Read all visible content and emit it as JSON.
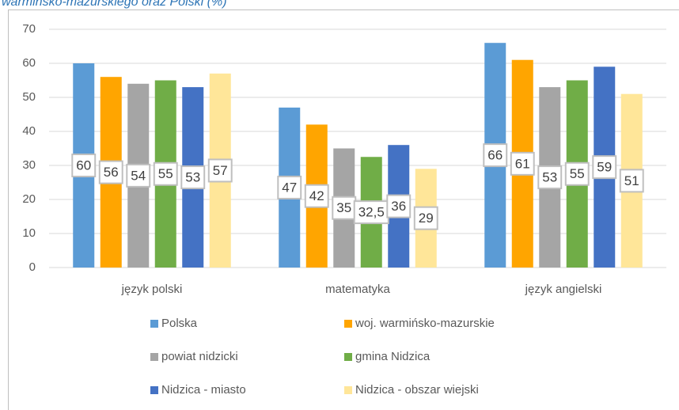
{
  "chart_data": {
    "type": "bar",
    "title": "warmińsko-mazurskiego oraz Polski (%)",
    "categories": [
      "język polski",
      "matematyka",
      "język angielski"
    ],
    "series": [
      {
        "name": "Polska",
        "color": "#5b9bd5",
        "values": [
          60,
          47,
          66
        ]
      },
      {
        "name": "woj. warmińsko-mazurskie",
        "color": "#ffa500",
        "values": [
          56,
          42,
          61
        ]
      },
      {
        "name": "powiat nidzicki",
        "color": "#a5a5a5",
        "values": [
          54,
          35,
          53
        ]
      },
      {
        "name": "gmina Nidzica",
        "color": "#70ad47",
        "values": [
          55,
          32.5,
          55
        ],
        "value_labels": [
          "55",
          "32,5",
          "55"
        ]
      },
      {
        "name": "Nidzica - miasto",
        "color": "#4472c4",
        "values": [
          53,
          36,
          59
        ]
      },
      {
        "name": "Nidzica - obszar wiejski",
        "color": "#ffe699",
        "values": [
          57,
          29,
          51
        ]
      }
    ],
    "ylim": [
      0,
      70
    ],
    "yticks": [
      0,
      10,
      20,
      30,
      40,
      50,
      60,
      70
    ],
    "grid": true,
    "legend": "bottom"
  }
}
